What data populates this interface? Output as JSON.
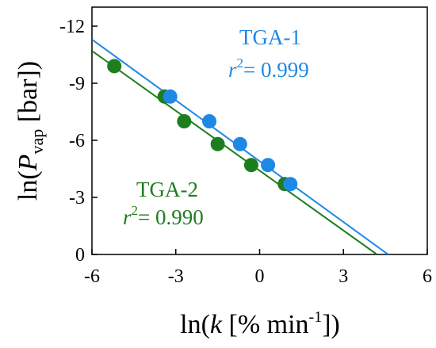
{
  "chart_data": {
    "type": "scatter",
    "xlabel": {
      "pre": "ln(",
      "var": "k",
      "post": " [% min",
      "sup": "-1",
      "end": "])"
    },
    "ylabel": {
      "pre": "ln(",
      "var": "P",
      "sub": "vap",
      "post": " [bar])"
    },
    "xlim": [
      -6,
      6
    ],
    "ylim": [
      0,
      -13
    ],
    "y_axis_inverted": true,
    "x_ticks": [
      -6,
      -3,
      0,
      3,
      6
    ],
    "y_ticks": [
      0,
      -3,
      -6,
      -9,
      -12
    ],
    "x_tick_labels": [
      "-6",
      "-3",
      "0",
      "3",
      "6"
    ],
    "y_tick_labels": [
      "0",
      "-3",
      "-6",
      "-9",
      "-12"
    ],
    "grid": false,
    "legend": "none",
    "series": [
      {
        "name": "TGA-1",
        "r2_label": "r",
        "r2_value": "= 0.999",
        "color": "#1e88e5",
        "points": [
          {
            "x": -3.2,
            "y": -8.3
          },
          {
            "x": -1.8,
            "y": -7.0
          },
          {
            "x": -0.7,
            "y": -5.8
          },
          {
            "x": 0.3,
            "y": -4.7
          },
          {
            "x": 1.1,
            "y": -3.7
          }
        ],
        "fit": {
          "x1": -6.0,
          "y1": -11.3,
          "x2": 4.6,
          "y2": 0.0
        }
      },
      {
        "name": "TGA-2",
        "r2_label": "r",
        "r2_value": "= 0.990",
        "color": "#1e7d1e",
        "points": [
          {
            "x": -5.2,
            "y": -9.9
          },
          {
            "x": -3.4,
            "y": -8.3
          },
          {
            "x": -2.7,
            "y": -7.0
          },
          {
            "x": -1.5,
            "y": -5.8
          },
          {
            "x": -0.3,
            "y": -4.7
          },
          {
            "x": 0.9,
            "y": -3.7
          }
        ],
        "fit": {
          "x1": -6.0,
          "y1": -10.7,
          "x2": 4.2,
          "y2": 0.0
        }
      }
    ]
  }
}
